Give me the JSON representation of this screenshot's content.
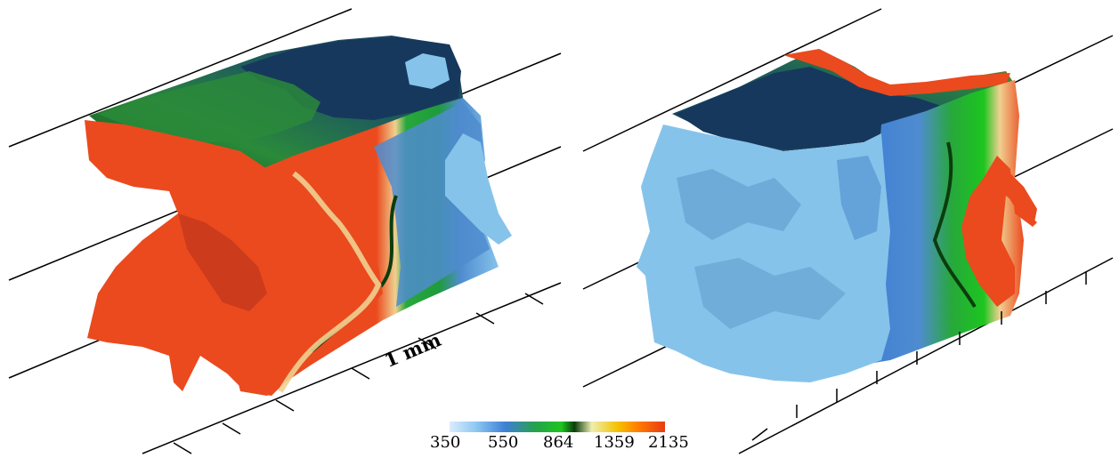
{
  "scale_bar": {
    "label": "1 mm"
  },
  "colorbar": {
    "ticks": [
      "350",
      "550",
      "864",
      "1359",
      "2135"
    ],
    "stops": [
      "#dcecff",
      "#8ec9f2",
      "#3f7fd6",
      "#25a34a",
      "#1dc51f",
      "#0b3d0d",
      "#eeeeb0",
      "#f5c200",
      "#ff7a00",
      "#e83a10"
    ]
  },
  "colors": {
    "burnt": "#ea4a1e",
    "unburnt": "#86c3eb",
    "mid_blue": "#4f8ccf",
    "green": "#27a83b",
    "dark_green": "#0d4a1a",
    "navy": "#17385d"
  }
}
